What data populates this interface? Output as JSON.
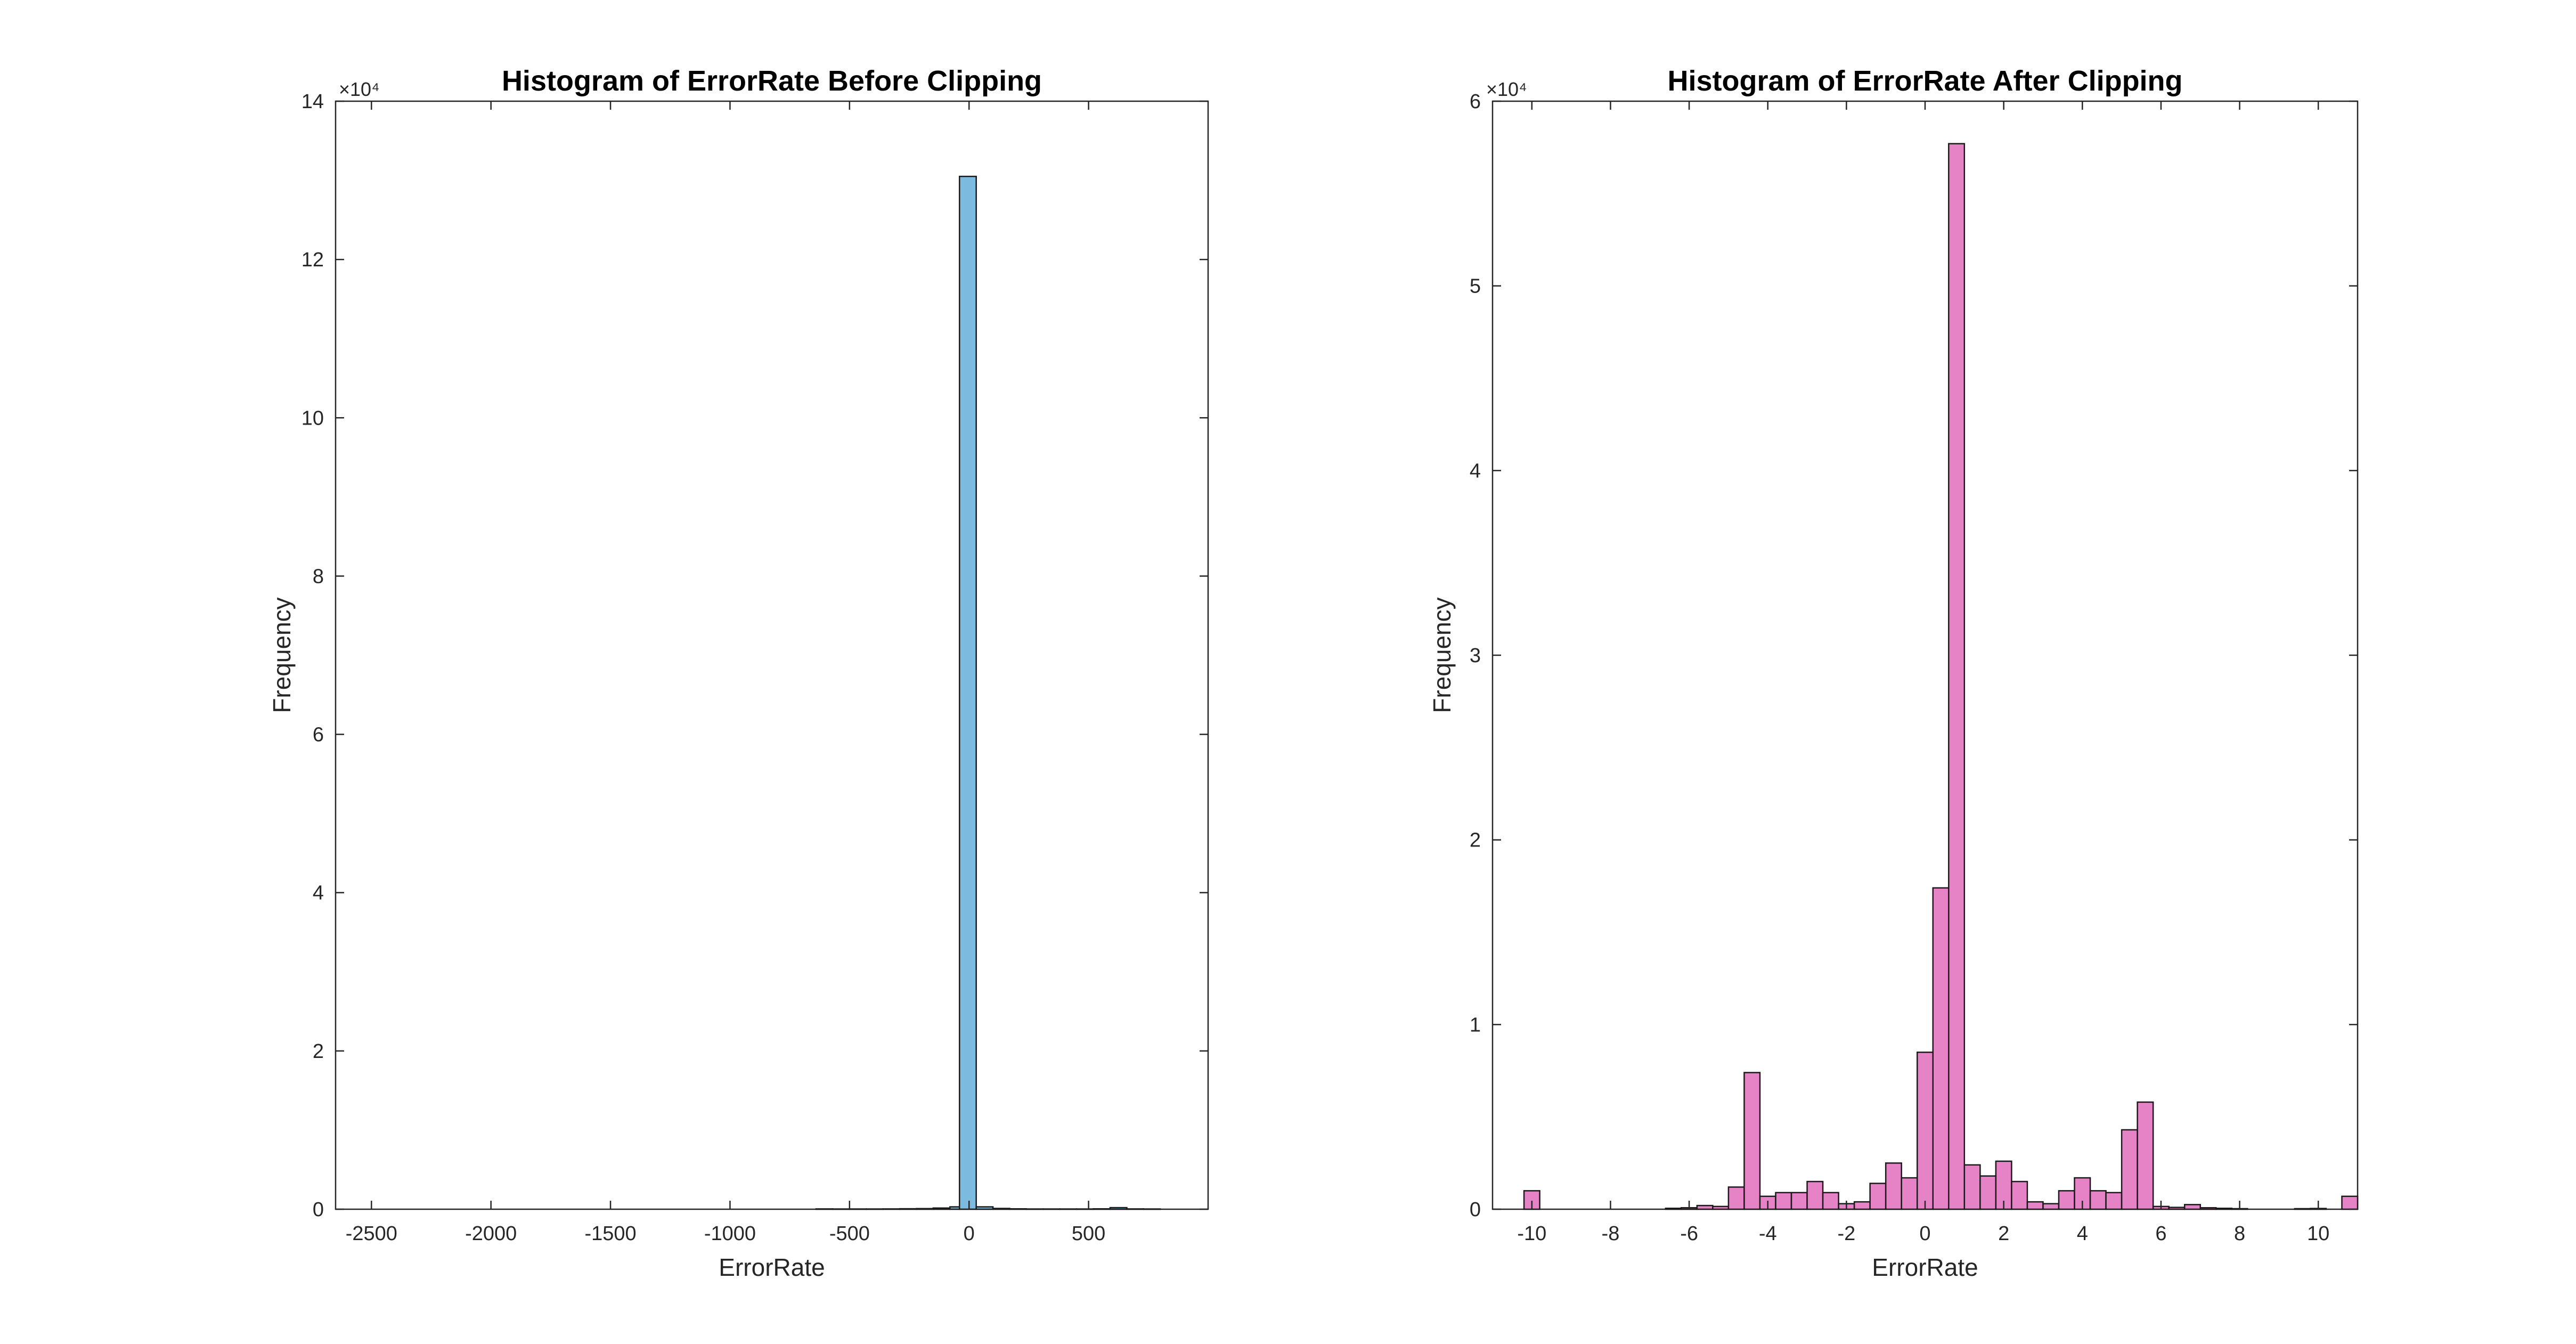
{
  "figure": {
    "colors": {
      "left_bar": "#7CBBDF",
      "right_bar": "#E583C6",
      "axis": "#262626"
    }
  },
  "chart_data": [
    {
      "type": "bar",
      "title": "Histogram of ErrorRate Before Clipping",
      "xlabel": "ErrorRate",
      "ylabel": "Frequency",
      "y_exponent_label": "×10⁴",
      "xlim": [
        -2650,
        1000
      ],
      "ylim": [
        0,
        140000
      ],
      "x_ticks": [
        -2500,
        -2000,
        -1500,
        -1000,
        -500,
        0,
        500
      ],
      "x_tick_labels": [
        "-2500",
        "-2000",
        "-1500",
        "-1000",
        "-500",
        "0",
        "500"
      ],
      "y_ticks": [
        0,
        20000,
        40000,
        60000,
        80000,
        100000,
        120000,
        140000
      ],
      "y_tick_labels": [
        "0",
        "2",
        "4",
        "6",
        "8",
        "10",
        "12",
        "14"
      ],
      "bins": [
        {
          "x0": -640,
          "x1": -570,
          "value": 40
        },
        {
          "x0": -570,
          "x1": -500,
          "value": 30
        },
        {
          "x0": -500,
          "x1": -430,
          "value": 30
        },
        {
          "x0": -430,
          "x1": -360,
          "value": 30
        },
        {
          "x0": -360,
          "x1": -290,
          "value": 40
        },
        {
          "x0": -290,
          "x1": -220,
          "value": 60
        },
        {
          "x0": -220,
          "x1": -150,
          "value": 80
        },
        {
          "x0": -150,
          "x1": -80,
          "value": 150
        },
        {
          "x0": -80,
          "x1": -40,
          "value": 300
        },
        {
          "x0": -40,
          "x1": 30,
          "value": 130500
        },
        {
          "x0": 30,
          "x1": 100,
          "value": 300
        },
        {
          "x0": 100,
          "x1": 170,
          "value": 100
        },
        {
          "x0": 170,
          "x1": 240,
          "value": 50
        },
        {
          "x0": 240,
          "x1": 310,
          "value": 30
        },
        {
          "x0": 310,
          "x1": 380,
          "value": 30
        },
        {
          "x0": 380,
          "x1": 450,
          "value": 30
        },
        {
          "x0": 450,
          "x1": 520,
          "value": 30
        },
        {
          "x0": 520,
          "x1": 590,
          "value": 50
        },
        {
          "x0": 590,
          "x1": 660,
          "value": 200
        },
        {
          "x0": 660,
          "x1": 730,
          "value": 40
        },
        {
          "x0": 730,
          "x1": 800,
          "value": 30
        }
      ]
    },
    {
      "type": "bar",
      "title": "Histogram of ErrorRate After Clipping",
      "xlabel": "ErrorRate",
      "ylabel": "Frequency",
      "y_exponent_label": "×10⁴",
      "xlim": [
        -11,
        11
      ],
      "ylim": [
        0,
        60000
      ],
      "x_ticks": [
        -10,
        -8,
        -6,
        -4,
        -2,
        0,
        2,
        4,
        6,
        8,
        10
      ],
      "x_tick_labels": [
        "-10",
        "-8",
        "-6",
        "-4",
        "-2",
        "0",
        "2",
        "4",
        "6",
        "8",
        "10"
      ],
      "y_ticks": [
        0,
        10000,
        20000,
        30000,
        40000,
        50000,
        60000
      ],
      "y_tick_labels": [
        "0",
        "1",
        "2",
        "3",
        "4",
        "5",
        "6"
      ],
      "bin_width": 0.4,
      "bin_start": -10.2,
      "values": [
        1000,
        0,
        0,
        0,
        0,
        0,
        0,
        0,
        0,
        50,
        80,
        200,
        150,
        1200,
        7400,
        700,
        900,
        900,
        1500,
        900,
        300,
        400,
        1400,
        2500,
        1700,
        8500,
        17400,
        57700,
        2400,
        1800,
        2600,
        1500,
        400,
        300,
        1000,
        1700,
        1000,
        900,
        4300,
        5800,
        150,
        100,
        250,
        80,
        50,
        30,
        0,
        0,
        0,
        30,
        40,
        0,
        700
      ]
    }
  ]
}
